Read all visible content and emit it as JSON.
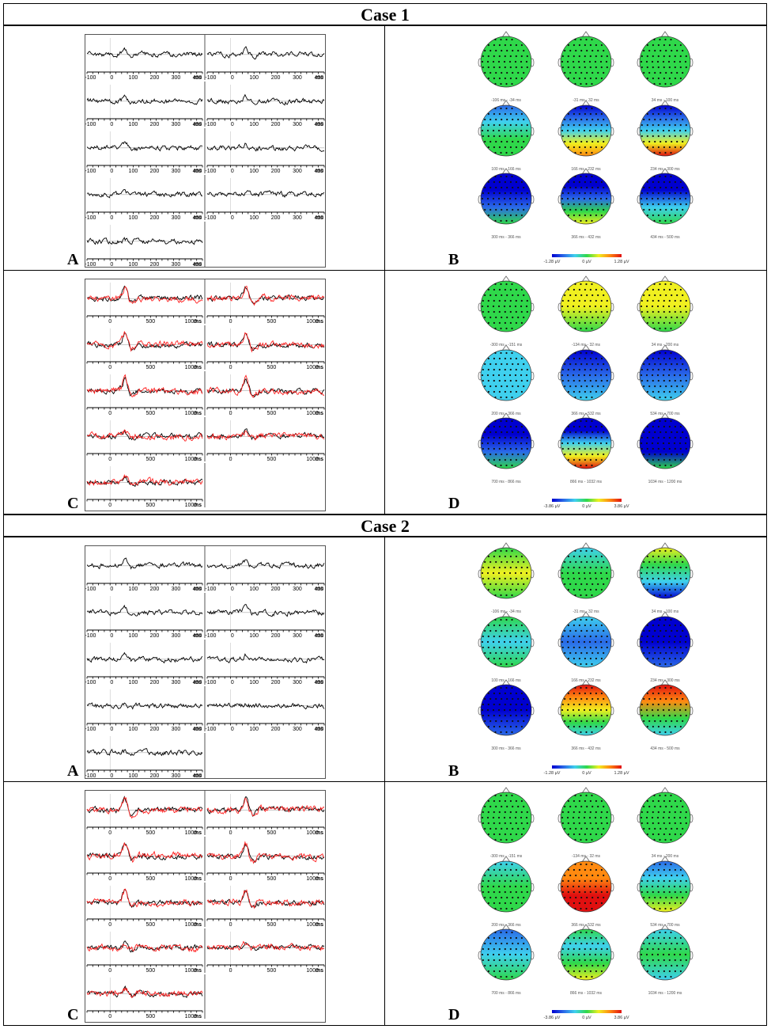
{
  "colors": {
    "trace_black": "#000000",
    "trace_red": "#ff2020",
    "topo_scale": [
      "#0000d0",
      "#2a6ae8",
      "#3fd0ee",
      "#2fd84a",
      "#f0f020",
      "#ff8a10",
      "#e01010"
    ]
  },
  "case1": {
    "title": "Case 1",
    "A": {
      "label": "A",
      "ticks": [
        "-100",
        "0",
        "100",
        "200",
        "300",
        "400"
      ],
      "unit": "ms"
    },
    "B": {
      "label": "B",
      "time_labels": [
        "-106 ms - -34 ms",
        "-31 ms - 32 ms",
        "34 ms - 100 ms",
        "100 ms - 166 ms",
        "166 ms - 232 ms",
        "234 ms - 300 ms",
        "300 ms - 366 ms",
        "366 ms - 432 ms",
        "434 ms - 500 ms"
      ],
      "scale": {
        "min": "-1.28 µV",
        "mid": "0 µV",
        "max": "1.28 µV"
      }
    },
    "C": {
      "label": "C",
      "ticks": [
        "0",
        "500",
        "1000"
      ],
      "unit": "ms"
    },
    "D": {
      "label": "D",
      "time_labels": [
        "-300 ms - -151 ms",
        "-134 ms - 32 ms",
        "34 ms - 200 ms",
        "200 ms - 366 ms",
        "366 ms - 532 ms",
        "534 ms - 700 ms",
        "700 ms - 866 ms",
        "866 ms - 1032 ms",
        "1034 ms - 1200 ms"
      ],
      "scale": {
        "min": "-3.86 µV",
        "mid": "0 µV",
        "max": "3.86 µV"
      }
    }
  },
  "case2": {
    "title": "Case 2",
    "A": {
      "label": "A",
      "ticks": [
        "-100",
        "0",
        "100",
        "200",
        "300",
        "400"
      ],
      "unit": "ms"
    },
    "B": {
      "label": "B",
      "time_labels": [
        "-106 ms - -34 ms",
        "-31 ms - 32 ms",
        "34 ms - 100 ms",
        "100 ms - 166 ms",
        "166 ms - 232 ms",
        "234 ms - 300 ms",
        "300 ms - 366 ms",
        "366 ms - 432 ms",
        "434 ms - 500 ms"
      ],
      "scale": {
        "min": "-1.28 µV",
        "mid": "0 µV",
        "max": "1.28 µV"
      }
    },
    "C": {
      "label": "C",
      "ticks": [
        "0",
        "500",
        "1000"
      ],
      "unit": "ms"
    },
    "D": {
      "label": "D",
      "time_labels": [
        "-300 ms - -151 ms",
        "-134 ms - 32 ms",
        "34 ms - 200 ms",
        "200 ms - 366 ms",
        "366 ms - 532 ms",
        "534 ms - 700 ms",
        "700 ms - 866 ms",
        "866 ms - 1032 ms",
        "1034 ms - 1200 ms"
      ],
      "scale": {
        "min": "-3.86 µV",
        "mid": "0 µV",
        "max": "3.86 µV"
      }
    }
  }
}
